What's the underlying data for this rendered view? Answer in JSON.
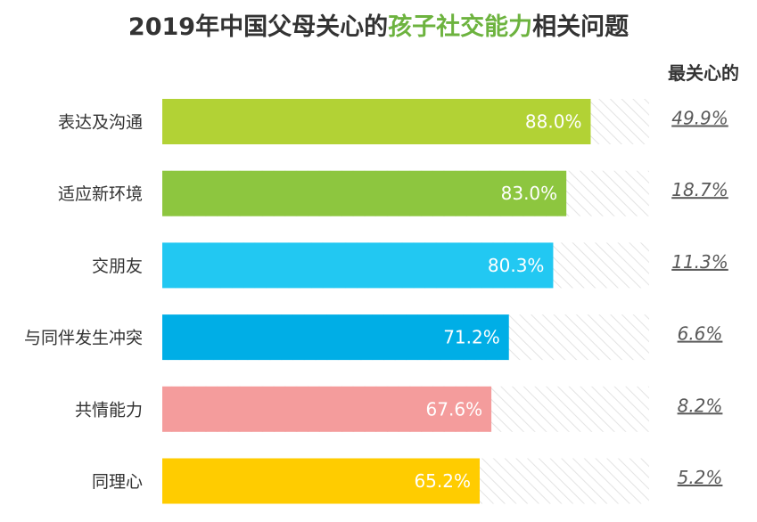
{
  "title": {
    "prefix": "2019年中国父母关心的",
    "highlight": "孩子社交能力",
    "suffix": "相关问题",
    "highlight_color": "#6db33f"
  },
  "side_header": "最关心的",
  "chart_data": {
    "type": "bar",
    "orientation": "horizontal",
    "xlim": [
      0,
      100
    ],
    "categories": [
      "表达及沟通",
      "适应新环境",
      "交朋友",
      "与同伴发生冲突",
      "共情能力",
      "同理心"
    ],
    "values": [
      88.0,
      83.0,
      80.3,
      71.2,
      67.6,
      65.2
    ],
    "value_labels": [
      "88.0%",
      "83.0%",
      "80.3%",
      "71.2%",
      "67.6%",
      "65.2%"
    ],
    "colors": [
      "#b2d235",
      "#8dc63f",
      "#22c8f2",
      "#00aee6",
      "#f49c9c",
      "#ffcc00"
    ],
    "most_concerned_values": [
      49.9,
      18.7,
      11.3,
      6.6,
      8.2,
      5.2
    ],
    "most_concerned_labels": [
      "49.9%",
      "18.7%",
      "11.3%",
      "6.6%",
      "8.2%",
      "5.2%"
    ]
  }
}
